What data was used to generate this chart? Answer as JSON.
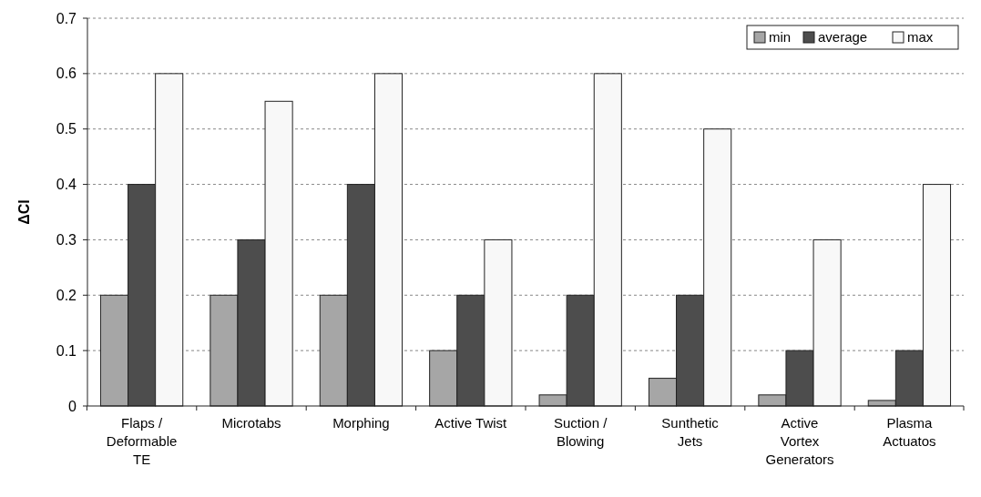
{
  "chart_data": {
    "type": "bar",
    "ylabel": "ΔCl",
    "categories": [
      "Flaps /\nDeformable\nTE",
      "Microtabs",
      "Morphing",
      "Active Twist",
      "Suction /\nBlowing",
      "Sunthetic\nJets",
      "Active\nVortex\nGenerators",
      "Plasma\nActuatos"
    ],
    "series": [
      {
        "name": "min",
        "color": "#a6a6a6",
        "values": [
          0.2,
          0.2,
          0.2,
          0.1,
          0.02,
          0.05,
          0.02,
          0.01
        ]
      },
      {
        "name": "average",
        "color": "#4d4d4d",
        "values": [
          0.4,
          0.3,
          0.4,
          0.2,
          0.2,
          0.2,
          0.1,
          0.1
        ]
      },
      {
        "name": "max",
        "color": "#f8f8f8",
        "values": [
          0.6,
          0.55,
          0.6,
          0.3,
          0.6,
          0.5,
          0.3,
          0.4
        ]
      }
    ],
    "ylim": [
      0,
      0.7
    ],
    "yticks": [
      0,
      0.1,
      0.2,
      0.3,
      0.4,
      0.5,
      0.6,
      0.7
    ],
    "grid": "y",
    "legend": "top right"
  }
}
